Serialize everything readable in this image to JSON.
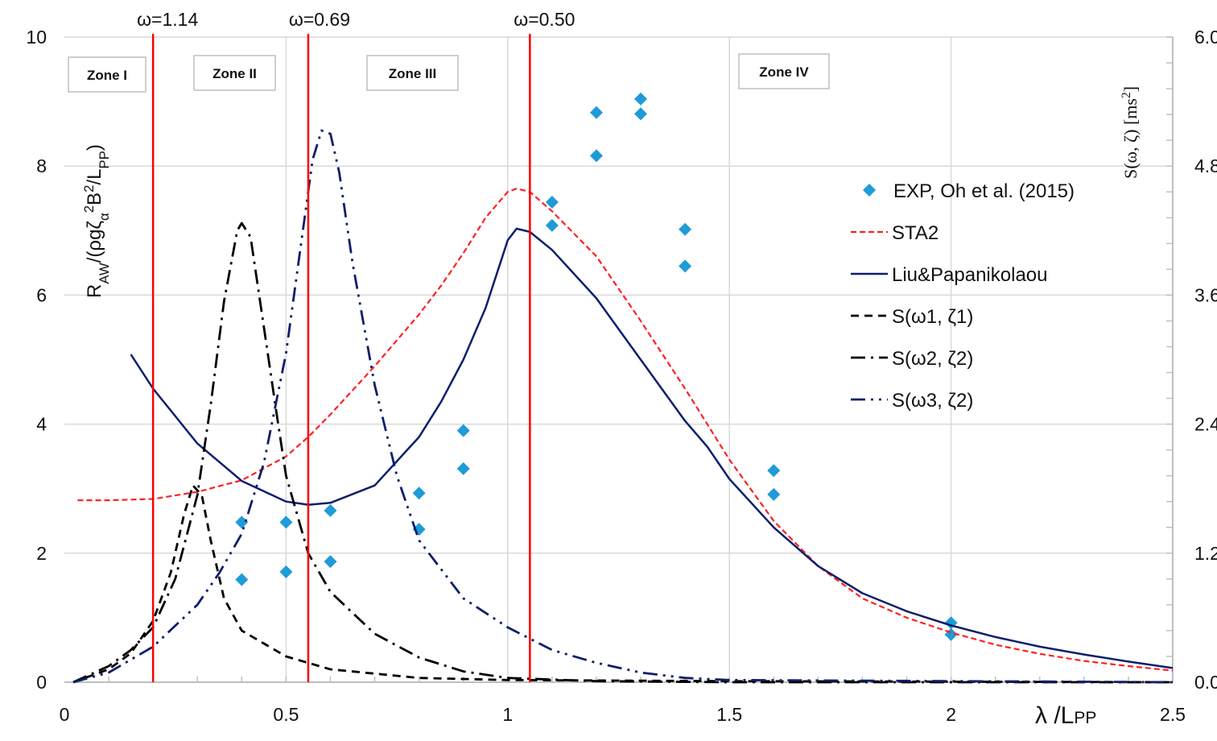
{
  "chart_data": {
    "type": "line",
    "xlabel_parts": [
      [
        "λ /L",
        ""
      ],
      [
        "PP",
        "small"
      ]
    ],
    "ylabel_parts": [
      [
        "R",
        ""
      ],
      [
        "AW",
        "sub"
      ],
      [
        "/(ρgζ",
        ""
      ],
      [
        "α",
        "sub"
      ],
      [
        "2",
        "sup"
      ],
      [
        "B",
        ""
      ],
      [
        "2",
        "sup"
      ],
      [
        "/L",
        ""
      ],
      [
        "PP",
        "sub"
      ],
      [
        ")",
        ""
      ]
    ],
    "y2label_parts": [
      [
        "S(ω, ζ) [ms",
        ""
      ],
      [
        "2",
        "sup"
      ],
      [
        "]",
        ""
      ]
    ],
    "xlim": [
      0,
      2.5
    ],
    "ylim": [
      0,
      10
    ],
    "y2lim": [
      0,
      6.0
    ],
    "xticks": [
      "0",
      "0.5",
      "1",
      "1.5",
      "2",
      "2.5"
    ],
    "yticks": [
      "0",
      "2",
      "4",
      "6",
      "8",
      "10"
    ],
    "y2ticks": [
      "0.0",
      "1.2",
      "2.4",
      "3.6",
      "4.8",
      "6.0"
    ],
    "grid": true,
    "legend_position": "right",
    "vertical_markers": [
      {
        "x": 0.2,
        "label": "ω=1.14"
      },
      {
        "x": 0.55,
        "label": "ω=0.69"
      },
      {
        "x": 1.05,
        "label": "ω=0.50"
      }
    ],
    "zones": [
      "Zone I",
      "Zone II",
      "Zone III",
      "Zone IV"
    ],
    "colors": {
      "exp": "#1f9bd7",
      "sta2": "#ff2020",
      "liu": "#0d1f6b",
      "spectrum_black": "#000000",
      "spectrum_navy": "#0d1f6b",
      "marker_line": "#ff0000"
    },
    "series": [
      {
        "name": "EXP, Oh et al. (2015)",
        "kind": "scatter",
        "axis": "left",
        "x": [
          0.4,
          0.4,
          0.5,
          0.5,
          0.6,
          0.6,
          0.8,
          0.8,
          0.9,
          0.9,
          1.1,
          1.1,
          1.2,
          1.2,
          1.3,
          1.3,
          1.4,
          1.4,
          1.6,
          1.6,
          2.0,
          2.0
        ],
        "y": [
          2.48,
          1.59,
          2.48,
          1.71,
          2.66,
          1.87,
          2.93,
          2.37,
          3.9,
          3.31,
          7.44,
          7.08,
          8.83,
          8.16,
          9.04,
          8.81,
          7.02,
          6.45,
          3.28,
          2.91,
          0.92,
          0.74
        ]
      },
      {
        "name": "STA2",
        "kind": "line",
        "axis": "left",
        "x": [
          0.03,
          0.1,
          0.2,
          0.3,
          0.4,
          0.5,
          0.55,
          0.6,
          0.7,
          0.8,
          0.85,
          0.9,
          0.95,
          1.0,
          1.02,
          1.05,
          1.1,
          1.2,
          1.3,
          1.4,
          1.45,
          1.5,
          1.6,
          1.7,
          1.8,
          1.9,
          2.0,
          2.1,
          2.2,
          2.3,
          2.4,
          2.5
        ],
        "y": [
          2.82,
          2.82,
          2.84,
          2.95,
          3.13,
          3.5,
          3.8,
          4.15,
          4.9,
          5.7,
          6.15,
          6.65,
          7.2,
          7.6,
          7.65,
          7.6,
          7.3,
          6.6,
          5.6,
          4.55,
          4.0,
          3.45,
          2.5,
          1.8,
          1.3,
          1.0,
          0.77,
          0.58,
          0.44,
          0.33,
          0.25,
          0.18
        ]
      },
      {
        "name": "Liu&Papanikolaou",
        "kind": "line",
        "axis": "left",
        "x": [
          0.15,
          0.2,
          0.3,
          0.4,
          0.5,
          0.55,
          0.6,
          0.7,
          0.8,
          0.85,
          0.9,
          0.95,
          1.0,
          1.02,
          1.05,
          1.1,
          1.2,
          1.3,
          1.4,
          1.45,
          1.5,
          1.6,
          1.7,
          1.8,
          1.9,
          2.0,
          2.1,
          2.2,
          2.3,
          2.4,
          2.5
        ],
        "y": [
          5.08,
          4.55,
          3.7,
          3.12,
          2.8,
          2.75,
          2.78,
          3.05,
          3.8,
          4.35,
          5.0,
          5.8,
          6.85,
          7.03,
          6.98,
          6.7,
          5.95,
          5.0,
          4.05,
          3.65,
          3.15,
          2.4,
          1.8,
          1.38,
          1.1,
          0.88,
          0.7,
          0.55,
          0.43,
          0.32,
          0.22
        ]
      },
      {
        "name": "S(ω1, ζ1)",
        "kind": "line",
        "axis": "right",
        "x": [
          0.02,
          0.1,
          0.15,
          0.2,
          0.24,
          0.27,
          0.29,
          0.31,
          0.33,
          0.36,
          0.4,
          0.5,
          0.6,
          0.8,
          1.0,
          1.5,
          2.5
        ],
        "y": [
          0,
          0.12,
          0.27,
          0.57,
          1.02,
          1.56,
          1.83,
          1.74,
          1.32,
          0.78,
          0.48,
          0.24,
          0.12,
          0.04,
          0.02,
          0.01,
          0
        ]
      },
      {
        "name": "S(ω2, ζ2)",
        "kind": "line",
        "axis": "right",
        "x": [
          0.02,
          0.1,
          0.15,
          0.2,
          0.25,
          0.3,
          0.33,
          0.36,
          0.39,
          0.4,
          0.42,
          0.45,
          0.48,
          0.5,
          0.55,
          0.6,
          0.7,
          0.8,
          0.9,
          1.0,
          1.2,
          1.5,
          2.5
        ],
        "y": [
          0,
          0.15,
          0.3,
          0.51,
          0.96,
          1.74,
          2.58,
          3.54,
          4.2,
          4.27,
          4.14,
          3.3,
          2.46,
          1.92,
          1.2,
          0.84,
          0.45,
          0.23,
          0.1,
          0.04,
          0.01,
          0,
          0
        ]
      },
      {
        "name": "S(ω3, ζ2)",
        "kind": "line",
        "axis": "right",
        "x": [
          0.02,
          0.1,
          0.2,
          0.3,
          0.35,
          0.4,
          0.45,
          0.5,
          0.53,
          0.56,
          0.58,
          0.6,
          0.62,
          0.65,
          0.7,
          0.75,
          0.8,
          0.9,
          1.0,
          1.1,
          1.2,
          1.3,
          1.4,
          1.5,
          2.5
        ],
        "y": [
          0,
          0.09,
          0.33,
          0.72,
          1.02,
          1.38,
          2.04,
          3.06,
          3.96,
          4.86,
          5.13,
          5.1,
          4.74,
          3.9,
          2.76,
          1.92,
          1.32,
          0.78,
          0.51,
          0.3,
          0.18,
          0.09,
          0.04,
          0.02,
          0
        ]
      }
    ]
  }
}
